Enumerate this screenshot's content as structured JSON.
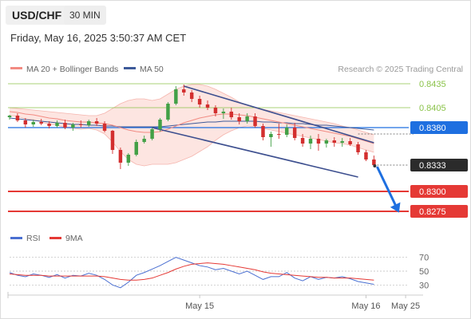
{
  "header": {
    "pair": "USD/CHF",
    "interval": "30 MIN",
    "timestamp": "Friday, May 16, 2025 3:50:37 AM CET"
  },
  "legend": {
    "items": [
      {
        "label": "MA 20 + Bollinger Bands",
        "color": "#f28b82"
      },
      {
        "label": "MA 50",
        "color": "#3d5a99"
      }
    ],
    "copyright": "Research © 2025 Trading Central"
  },
  "rsi_legend": {
    "items": [
      {
        "label": "RSI",
        "color": "#4a6fd1"
      },
      {
        "label": "9MA",
        "color": "#e53935"
      }
    ]
  },
  "colors": {
    "resistance": "#1e6fe0",
    "support": "#e53935",
    "target_green": "#8bc34a",
    "bb_fill": "#fde0dc",
    "ma20": "#f28b82",
    "ma50": "#3d5a99",
    "candle_up": "#43a047",
    "candle_down": "#d32f2f",
    "arrow": "#1e6fe0",
    "channel": "#3d4f8f"
  },
  "chart_data": [
    {
      "type": "candlestick",
      "title": "USD/CHF",
      "ylim": [
        0.8262,
        0.8445
      ],
      "y_axis_labels": [
        "0.8435",
        "0.8405",
        "0.8380",
        "0.8333",
        "0.8300",
        "0.8275"
      ],
      "x_tick_labels": [
        "May 15",
        "May 16",
        "May 25"
      ],
      "x_ticks": [
        24,
        45,
        50
      ],
      "x_range": [
        0,
        51
      ],
      "last_price": 0.8333,
      "levels": [
        {
          "value": 0.8435,
          "label": "0.8435",
          "kind": "target"
        },
        {
          "value": 0.8405,
          "label": "0.8405",
          "kind": "target"
        },
        {
          "value": 0.838,
          "label": "0.8380",
          "kind": "resistance"
        },
        {
          "value": 0.8333,
          "label": "0.8333",
          "kind": "last"
        },
        {
          "value": 0.83,
          "label": "0.8300",
          "kind": "support"
        },
        {
          "value": 0.8275,
          "label": "0.8275",
          "kind": "support"
        }
      ],
      "ohlc": [
        [
          0.8393,
          0.8396,
          0.839,
          0.8395
        ],
        [
          0.8395,
          0.8398,
          0.8387,
          0.8389
        ],
        [
          0.8389,
          0.8392,
          0.838,
          0.8384
        ],
        [
          0.8384,
          0.839,
          0.8381,
          0.8387
        ],
        [
          0.8387,
          0.8391,
          0.8383,
          0.8385
        ],
        [
          0.8385,
          0.8388,
          0.8379,
          0.8382
        ],
        [
          0.8382,
          0.8389,
          0.838,
          0.8386
        ],
        [
          0.8386,
          0.839,
          0.8378,
          0.838
        ],
        [
          0.838,
          0.8386,
          0.8376,
          0.8384
        ],
        [
          0.8384,
          0.8389,
          0.838,
          0.8383
        ],
        [
          0.8383,
          0.839,
          0.8381,
          0.8388
        ],
        [
          0.8388,
          0.8392,
          0.8382,
          0.8385
        ],
        [
          0.8385,
          0.8388,
          0.8374,
          0.8376
        ],
        [
          0.8376,
          0.8377,
          0.8347,
          0.8352
        ],
        [
          0.8352,
          0.8355,
          0.8328,
          0.8336
        ],
        [
          0.8336,
          0.8348,
          0.8332,
          0.8346
        ],
        [
          0.8346,
          0.8365,
          0.8344,
          0.8362
        ],
        [
          0.8362,
          0.837,
          0.836,
          0.8366
        ],
        [
          0.8366,
          0.838,
          0.8364,
          0.8378
        ],
        [
          0.8378,
          0.8392,
          0.8375,
          0.839
        ],
        [
          0.839,
          0.8412,
          0.8388,
          0.841
        ],
        [
          0.841,
          0.8432,
          0.8408,
          0.8428
        ],
        [
          0.8428,
          0.8434,
          0.842,
          0.8424
        ],
        [
          0.8424,
          0.8427,
          0.8412,
          0.8416
        ],
        [
          0.8416,
          0.842,
          0.8405,
          0.8409
        ],
        [
          0.8409,
          0.8414,
          0.8402,
          0.8405
        ],
        [
          0.8405,
          0.8408,
          0.8394,
          0.8398
        ],
        [
          0.8398,
          0.8404,
          0.8391,
          0.84
        ],
        [
          0.84,
          0.8405,
          0.839,
          0.8393
        ],
        [
          0.8393,
          0.8398,
          0.8384,
          0.8388
        ],
        [
          0.8388,
          0.8398,
          0.8385,
          0.8394
        ],
        [
          0.8394,
          0.8398,
          0.838,
          0.8382
        ],
        [
          0.8382,
          0.8385,
          0.8364,
          0.8368
        ],
        [
          0.8368,
          0.8375,
          0.8356,
          0.8372
        ],
        [
          0.8372,
          0.8385,
          0.8366,
          0.8371
        ],
        [
          0.8371,
          0.8384,
          0.8368,
          0.838
        ],
        [
          0.838,
          0.8386,
          0.8364,
          0.8367
        ],
        [
          0.8367,
          0.8372,
          0.8356,
          0.836
        ],
        [
          0.836,
          0.837,
          0.8353,
          0.8366
        ],
        [
          0.8366,
          0.8372,
          0.8351,
          0.836
        ],
        [
          0.836,
          0.8366,
          0.8355,
          0.8364
        ],
        [
          0.8364,
          0.8368,
          0.8356,
          0.8361
        ],
        [
          0.8361,
          0.8367,
          0.8356,
          0.8363
        ],
        [
          0.8363,
          0.8367,
          0.8357,
          0.8359
        ],
        [
          0.8359,
          0.8362,
          0.8346,
          0.8349
        ],
        [
          0.8349,
          0.8352,
          0.8338,
          0.834
        ],
        [
          0.834,
          0.8345,
          0.8333,
          0.8333
        ]
      ],
      "ma20": [
        0.84,
        0.8399,
        0.8397,
        0.8396,
        0.8394,
        0.8392,
        0.8391,
        0.8389,
        0.8388,
        0.8387,
        0.8387,
        0.8386,
        0.8385,
        0.8383,
        0.838,
        0.8377,
        0.8375,
        0.8374,
        0.8374,
        0.8375,
        0.8378,
        0.8382,
        0.8386,
        0.8389,
        0.8392,
        0.8394,
        0.8396,
        0.8397,
        0.8397,
        0.8396,
        0.8395,
        0.8393,
        0.8391,
        0.8389,
        0.8387,
        0.8385,
        0.8383,
        0.8381,
        0.8379,
        0.8377,
        0.8375,
        0.8373,
        0.8371,
        0.8369,
        0.8366,
        0.8363,
        0.836
      ],
      "bb_upper": [
        0.8405,
        0.8404,
        0.8403,
        0.8402,
        0.8401,
        0.84,
        0.8399,
        0.8398,
        0.8397,
        0.8396,
        0.8395,
        0.8395,
        0.8398,
        0.8404,
        0.841,
        0.8414,
        0.8416,
        0.8416,
        0.8414,
        0.8416,
        0.8422,
        0.8428,
        0.8432,
        0.8434,
        0.8434,
        0.8432,
        0.8428,
        0.8423,
        0.8418,
        0.8412,
        0.8408,
        0.8405,
        0.8403,
        0.8401,
        0.8399,
        0.8397,
        0.8395,
        0.8393,
        0.8391,
        0.8389,
        0.8387,
        0.8385,
        0.8382,
        0.838,
        0.8377,
        0.8374,
        0.8371
      ],
      "bb_lower": [
        0.8395,
        0.8394,
        0.8391,
        0.839,
        0.8387,
        0.8384,
        0.8383,
        0.838,
        0.8379,
        0.8378,
        0.8379,
        0.8377,
        0.8372,
        0.8362,
        0.835,
        0.834,
        0.8334,
        0.8332,
        0.8334,
        0.8334,
        0.8334,
        0.8336,
        0.834,
        0.8344,
        0.835,
        0.8356,
        0.8364,
        0.8371,
        0.8376,
        0.838,
        0.8382,
        0.8381,
        0.8379,
        0.8377,
        0.8375,
        0.8373,
        0.8371,
        0.8369,
        0.8367,
        0.8365,
        0.8363,
        0.8361,
        0.836,
        0.8358,
        0.8355,
        0.8352,
        0.8349
      ],
      "ma50": [
        0.8392,
        0.8391,
        0.839,
        0.8389,
        0.8388,
        0.8387,
        0.8386,
        0.8385,
        0.8384,
        0.8384,
        0.8383,
        0.8383,
        0.8382,
        0.8382,
        0.8381,
        0.8381,
        0.8381,
        0.8381,
        0.8381,
        0.8381,
        0.8382,
        0.8383,
        0.8384,
        0.8385,
        0.8386,
        0.8387,
        0.8387,
        0.8388,
        0.8388,
        0.8388,
        0.8388,
        0.8388,
        0.8387,
        0.8387,
        0.8386,
        0.8386,
        0.8385,
        0.8385,
        0.8384,
        0.8383,
        0.8383,
        0.8382,
        0.8381,
        0.838,
        0.8379,
        0.8378,
        0.8377
      ],
      "channel": {
        "upper": [
          [
            22,
            0.8432
          ],
          [
            46,
            0.8361
          ]
        ],
        "lower": [
          [
            18,
            0.838
          ],
          [
            44,
            0.8318
          ]
        ]
      },
      "forecast_arrow": [
        [
          46,
          0.8333
        ],
        [
          49,
          0.8275
        ]
      ]
    },
    {
      "type": "line",
      "title": "RSI",
      "ylim": [
        20,
        80
      ],
      "y_ticks": [
        70,
        50,
        30
      ],
      "series": [
        {
          "name": "RSI",
          "color": "#4a6fd1",
          "values": [
            48,
            44,
            42,
            46,
            44,
            41,
            45,
            40,
            44,
            43,
            47,
            44,
            38,
            30,
            26,
            34,
            44,
            48,
            53,
            58,
            64,
            70,
            66,
            62,
            58,
            56,
            52,
            54,
            50,
            46,
            50,
            44,
            38,
            42,
            42,
            48,
            40,
            36,
            42,
            38,
            41,
            40,
            42,
            39,
            35,
            33,
            31
          ]
        },
        {
          "name": "9MA",
          "color": "#e53935",
          "values": [
            46,
            45,
            44,
            44,
            44,
            43,
            43,
            43,
            43,
            43,
            43,
            43,
            42,
            40,
            38,
            37,
            37,
            38,
            40,
            44,
            48,
            53,
            57,
            60,
            61,
            62,
            61,
            60,
            58,
            56,
            54,
            52,
            49,
            47,
            46,
            45,
            44,
            43,
            42,
            41,
            41,
            40,
            40,
            40,
            39,
            38,
            37
          ]
        }
      ]
    }
  ]
}
